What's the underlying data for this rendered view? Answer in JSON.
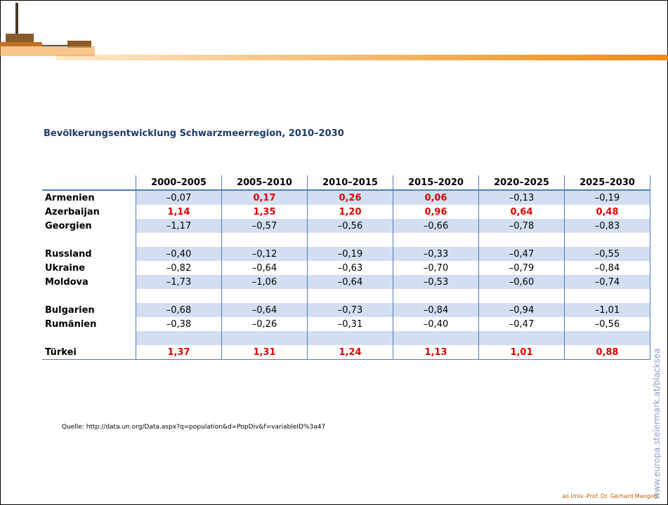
{
  "title": "Bevölkerungsentwicklung Schwarzmeerregion, 2010–2030",
  "table": {
    "columns": [
      "2000–2005",
      "2005–2010",
      "2010–2015",
      "2015–2020",
      "2020–2025",
      "2025–2030"
    ],
    "groups": [
      [
        {
          "label": "Armenien",
          "cells": [
            "–0,07",
            "0,17",
            "0,26",
            "0,06",
            "–0,13",
            "–0,19"
          ],
          "colors": [
            "#000000",
            "#e00000",
            "#e00000",
            "#e00000",
            "#000000",
            "#000000"
          ]
        },
        {
          "label": "Azerbaijan",
          "cells": [
            "1,14",
            "1,35",
            "1,20",
            "0,96",
            "0,64",
            "0,48"
          ],
          "colors": [
            "#e00000",
            "#e00000",
            "#e00000",
            "#e00000",
            "#e00000",
            "#e00000"
          ]
        },
        {
          "label": "Georgien",
          "cells": [
            "–1,17",
            "–0,57",
            "–0,56",
            "–0,66",
            "–0,78",
            "–0,83"
          ],
          "colors": [
            "#000000",
            "#000000",
            "#000000",
            "#000000",
            "#000000",
            "#000000"
          ]
        }
      ],
      [
        {
          "label": "Russland",
          "cells": [
            "–0,40",
            "–0,12",
            "–0,19",
            "–0,33",
            "–0,47",
            "–0,55"
          ],
          "colors": [
            "#000000",
            "#000000",
            "#000000",
            "#000000",
            "#000000",
            "#000000"
          ]
        },
        {
          "label": "Ukraine",
          "cells": [
            "–0,82",
            "–0,64",
            "–0,63",
            "–0,70",
            "–0,79",
            "–0,84"
          ],
          "colors": [
            "#000000",
            "#000000",
            "#000000",
            "#000000",
            "#000000",
            "#000000"
          ]
        },
        {
          "label": "Moldova",
          "cells": [
            "–1,73",
            "–1,06",
            "–0,64",
            "–0,53",
            "–0,60",
            "–0,74"
          ],
          "colors": [
            "#000000",
            "#000000",
            "#000000",
            "#000000",
            "#000000",
            "#000000"
          ]
        }
      ],
      [
        {
          "label": "Bulgarien",
          "cells": [
            "–0,68",
            "–0,64",
            "–0,73",
            "–0,84",
            "–0,94",
            "–1,01"
          ],
          "colors": [
            "#000000",
            "#000000",
            "#000000",
            "#000000",
            "#000000",
            "#000000"
          ]
        },
        {
          "label": "Rumänien",
          "cells": [
            "–0,38",
            "–0,26",
            "–0,31",
            "–0,40",
            "–0,47",
            "–0,56"
          ],
          "colors": [
            "#000000",
            "#000000",
            "#000000",
            "#000000",
            "#000000",
            "#000000"
          ]
        }
      ],
      [
        {
          "label": "Türkei",
          "cells": [
            "1,37",
            "1,31",
            "1,24",
            "1,13",
            "1,01",
            "0,88"
          ],
          "colors": [
            "#e00000",
            "#e00000",
            "#e00000",
            "#e00000",
            "#e00000",
            "#e00000"
          ]
        }
      ]
    ]
  },
  "source": "Quelle: http://data.un.org/Data.aspx?q=population&d=PopDiv&f=variableID%3a47",
  "footer": "ao.Univ.-Prof. Dr. Gerhard Mangott",
  "side_note": "www.europa.steiermark.at/blacksea"
}
